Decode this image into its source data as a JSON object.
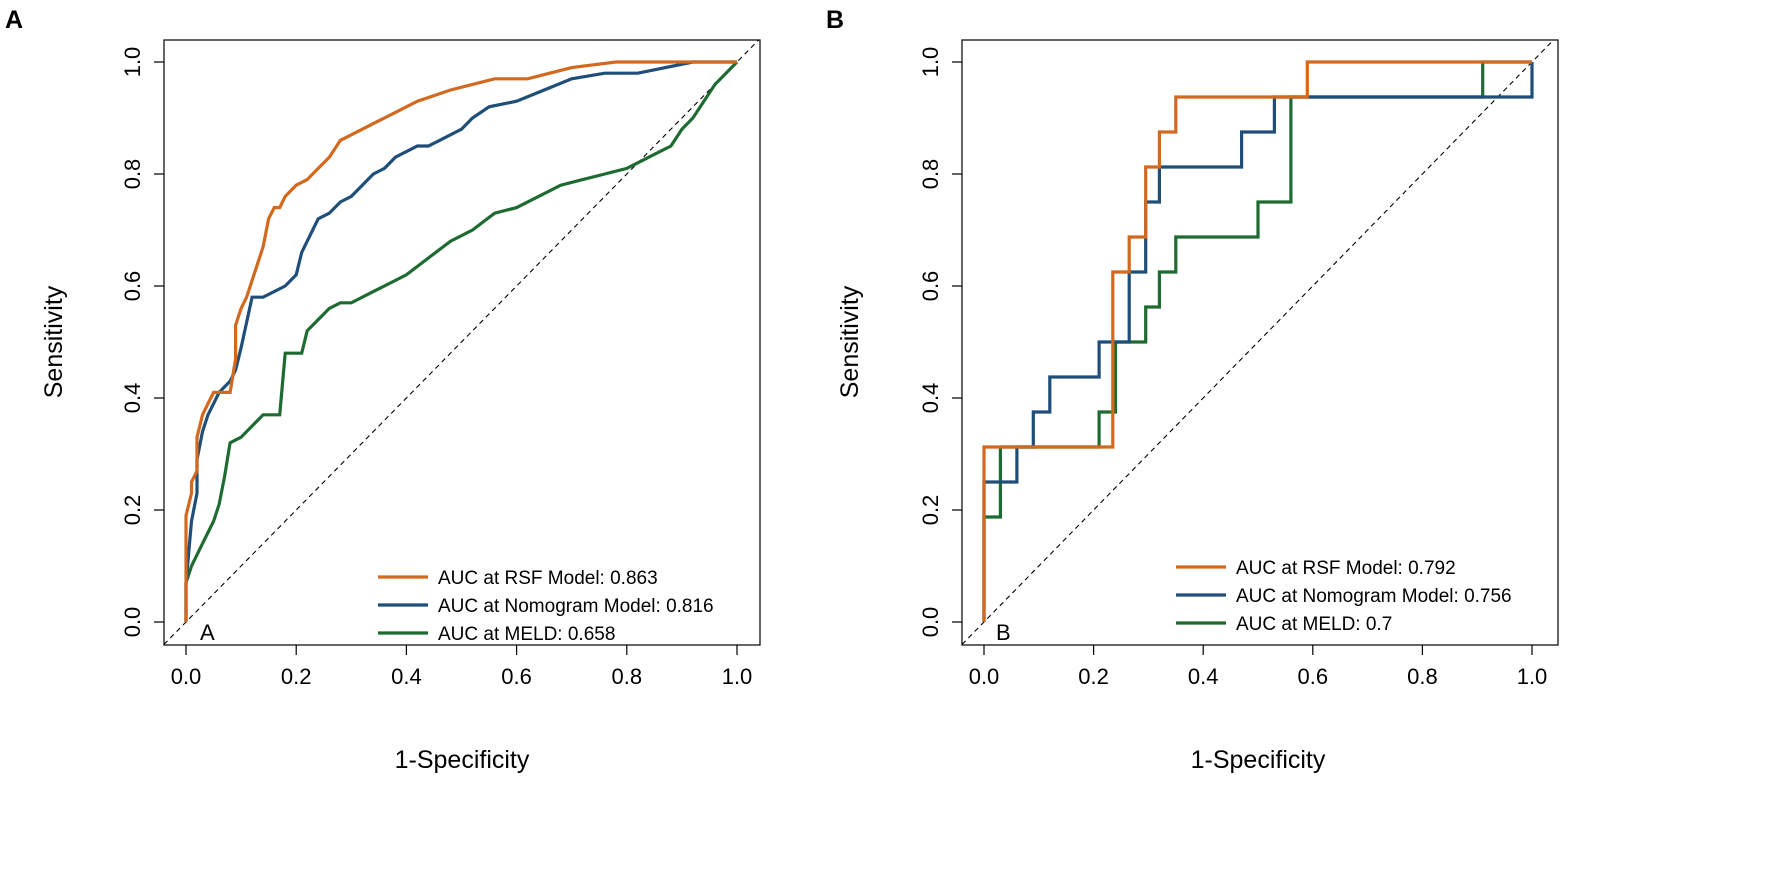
{
  "figure": {
    "panels": [
      "A",
      "B"
    ]
  },
  "colors": {
    "rsf": "#d2691e",
    "nomogram": "#1f4e79",
    "meld": "#1e6b32"
  },
  "chart_data": [
    {
      "type": "line",
      "panel_label": "A",
      "inner_label": "A",
      "xlabel": "1-Specificity",
      "ylabel": "Sensitivity",
      "xlim": [
        0,
        1
      ],
      "ylim": [
        0,
        1
      ],
      "xticks": [
        "0.0",
        "0.2",
        "0.4",
        "0.6",
        "0.8",
        "1.0"
      ],
      "yticks": [
        "0.0",
        "0.2",
        "0.4",
        "0.6",
        "0.8",
        "1.0"
      ],
      "reference_line": "diagonal",
      "legend_position": "bottom-right",
      "series": [
        {
          "key": "rsf",
          "name": "AUC at RSF Model: 0.863",
          "x": [
            0,
            0,
            0.01,
            0.01,
            0.02,
            0.02,
            0.03,
            0.04,
            0.05,
            0.06,
            0.08,
            0.09,
            0.09,
            0.1,
            0.11,
            0.12,
            0.13,
            0.14,
            0.15,
            0.16,
            0.17,
            0.18,
            0.2,
            0.22,
            0.24,
            0.26,
            0.28,
            0.3,
            0.32,
            0.34,
            0.36,
            0.38,
            0.4,
            0.42,
            0.45,
            0.48,
            0.52,
            0.56,
            0.62,
            0.66,
            0.7,
            0.78,
            0.86,
            0.92,
            1.0
          ],
          "y": [
            0,
            0.19,
            0.23,
            0.25,
            0.27,
            0.33,
            0.37,
            0.39,
            0.41,
            0.41,
            0.41,
            0.47,
            0.53,
            0.56,
            0.58,
            0.61,
            0.64,
            0.67,
            0.72,
            0.74,
            0.74,
            0.76,
            0.78,
            0.79,
            0.81,
            0.83,
            0.86,
            0.87,
            0.88,
            0.89,
            0.9,
            0.91,
            0.92,
            0.93,
            0.94,
            0.95,
            0.96,
            0.97,
            0.97,
            0.98,
            0.99,
            1.0,
            1.0,
            1.0,
            1.0
          ]
        },
        {
          "key": "nomogram",
          "name": "AUC at Nomogram Model: 0.816",
          "x": [
            0,
            0,
            0.01,
            0.02,
            0.02,
            0.03,
            0.04,
            0.05,
            0.06,
            0.08,
            0.09,
            0.1,
            0.12,
            0.14,
            0.16,
            0.18,
            0.2,
            0.21,
            0.22,
            0.23,
            0.24,
            0.26,
            0.28,
            0.3,
            0.32,
            0.34,
            0.36,
            0.38,
            0.4,
            0.42,
            0.44,
            0.46,
            0.48,
            0.5,
            0.52,
            0.55,
            0.6,
            0.65,
            0.7,
            0.76,
            0.82,
            0.92,
            0.96,
            1.0
          ],
          "y": [
            0,
            0.07,
            0.18,
            0.23,
            0.29,
            0.34,
            0.37,
            0.39,
            0.41,
            0.43,
            0.45,
            0.49,
            0.58,
            0.58,
            0.59,
            0.6,
            0.62,
            0.66,
            0.68,
            0.7,
            0.72,
            0.73,
            0.75,
            0.76,
            0.78,
            0.8,
            0.81,
            0.83,
            0.84,
            0.85,
            0.85,
            0.86,
            0.87,
            0.88,
            0.9,
            0.92,
            0.93,
            0.95,
            0.97,
            0.98,
            0.98,
            1.0,
            1.0,
            1.0
          ]
        },
        {
          "key": "meld",
          "name": "AUC at MELD: 0.658",
          "x": [
            0,
            0,
            0.01,
            0.02,
            0.03,
            0.04,
            0.05,
            0.06,
            0.07,
            0.08,
            0.1,
            0.12,
            0.14,
            0.17,
            0.18,
            0.21,
            0.22,
            0.24,
            0.26,
            0.28,
            0.3,
            0.34,
            0.36,
            0.4,
            0.44,
            0.48,
            0.52,
            0.56,
            0.6,
            0.64,
            0.68,
            0.72,
            0.76,
            0.8,
            0.82,
            0.84,
            0.86,
            0.88,
            0.9,
            0.92,
            0.94,
            0.96,
            0.98,
            1.0
          ],
          "y": [
            0,
            0.07,
            0.1,
            0.12,
            0.14,
            0.16,
            0.18,
            0.21,
            0.26,
            0.32,
            0.33,
            0.35,
            0.37,
            0.37,
            0.48,
            0.48,
            0.52,
            0.54,
            0.56,
            0.57,
            0.57,
            0.59,
            0.6,
            0.62,
            0.65,
            0.68,
            0.7,
            0.73,
            0.74,
            0.76,
            0.78,
            0.79,
            0.8,
            0.81,
            0.82,
            0.83,
            0.84,
            0.85,
            0.88,
            0.9,
            0.93,
            0.96,
            0.98,
            1.0
          ]
        }
      ]
    },
    {
      "type": "line",
      "panel_label": "B",
      "inner_label": "B",
      "xlabel": "1-Specificity",
      "ylabel": "Sensitivity",
      "xlim": [
        0,
        1
      ],
      "ylim": [
        0,
        1
      ],
      "xticks": [
        "0.0",
        "0.2",
        "0.4",
        "0.6",
        "0.8",
        "1.0"
      ],
      "yticks": [
        "0.0",
        "0.2",
        "0.4",
        "0.6",
        "0.8",
        "1.0"
      ],
      "reference_line": "diagonal",
      "legend_position": "bottom-right",
      "series": [
        {
          "key": "rsf",
          "name": "AUC at RSF Model: 0.792",
          "x": [
            0,
            0,
            0.03,
            0.03,
            0.21,
            0.21,
            0.235,
            0.235,
            0.265,
            0.265,
            0.295,
            0.295,
            0.32,
            0.32,
            0.35,
            0.35,
            0.59,
            0.59,
            0.91,
            0.91,
            1.0,
            1.0
          ],
          "y": [
            0,
            0.3125,
            0.3125,
            0.3125,
            0.3125,
            0.3125,
            0.3125,
            0.625,
            0.625,
            0.6875,
            0.6875,
            0.8125,
            0.8125,
            0.875,
            0.875,
            0.9375,
            0.9375,
            1.0,
            1.0,
            1.0,
            1.0,
            1.0
          ]
        },
        {
          "key": "nomogram",
          "name": "AUC at Nomogram Model: 0.756",
          "x": [
            0,
            0,
            0.03,
            0.03,
            0.06,
            0.06,
            0.09,
            0.09,
            0.12,
            0.12,
            0.21,
            0.21,
            0.265,
            0.265,
            0.295,
            0.295,
            0.32,
            0.32,
            0.47,
            0.47,
            0.53,
            0.53,
            0.91,
            0.91,
            1.0,
            1.0
          ],
          "y": [
            0,
            0.25,
            0.25,
            0.25,
            0.25,
            0.3125,
            0.3125,
            0.375,
            0.375,
            0.4375,
            0.4375,
            0.5,
            0.5,
            0.625,
            0.625,
            0.75,
            0.75,
            0.8125,
            0.8125,
            0.875,
            0.875,
            0.9375,
            0.9375,
            0.9375,
            0.9375,
            1.0
          ]
        },
        {
          "key": "meld",
          "name": "AUC at MELD: 0.7",
          "x": [
            0,
            0,
            0.03,
            0.03,
            0.21,
            0.21,
            0.24,
            0.24,
            0.295,
            0.295,
            0.32,
            0.32,
            0.35,
            0.35,
            0.5,
            0.5,
            0.56,
            0.56,
            0.91,
            0.91,
            1.0
          ],
          "y": [
            0,
            0.1875,
            0.1875,
            0.3125,
            0.3125,
            0.375,
            0.375,
            0.5,
            0.5,
            0.5625,
            0.5625,
            0.625,
            0.625,
            0.6875,
            0.6875,
            0.75,
            0.75,
            0.9375,
            0.9375,
            1.0,
            1.0
          ]
        }
      ]
    }
  ]
}
